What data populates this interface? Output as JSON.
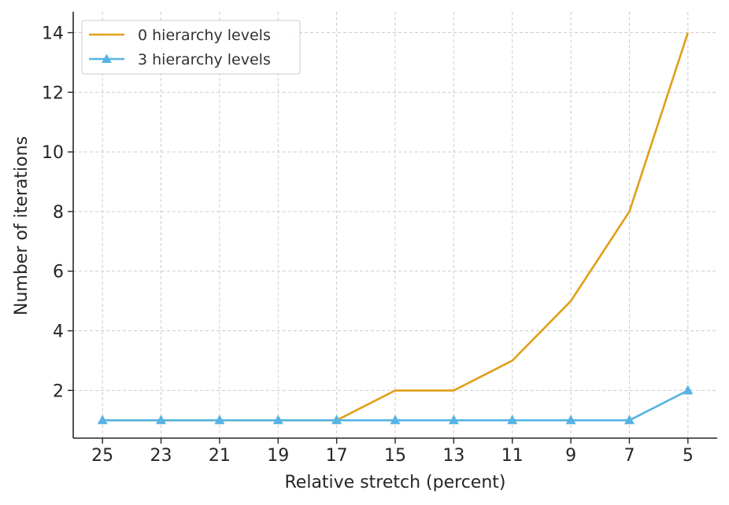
{
  "chart_data": {
    "type": "line",
    "x_ticks": [
      "25",
      "23",
      "21",
      "19",
      "17",
      "15",
      "13",
      "11",
      "9",
      "7",
      "5"
    ],
    "x": [
      25,
      23,
      21,
      19,
      17,
      15,
      13,
      11,
      9,
      7,
      5
    ],
    "x_reversed": true,
    "xlim": [
      26,
      4
    ],
    "y_ticks": [
      "2",
      "4",
      "6",
      "8",
      "10",
      "12",
      "14"
    ],
    "ylim": [
      0.4,
      14.7
    ],
    "xlabel": "Relative stretch (percent)",
    "ylabel": "Number of iterations",
    "grid": true,
    "legend_position": "top-left",
    "series": [
      {
        "name": "0 hierarchy levels",
        "values": [
          1,
          1,
          1,
          1,
          1,
          2,
          2,
          3,
          5,
          8,
          14
        ],
        "color": "#E09F17",
        "marker": "none"
      },
      {
        "name": "3 hierarchy levels",
        "values": [
          1,
          1,
          1,
          1,
          1,
          1,
          1,
          1,
          1,
          1,
          2
        ],
        "color": "#56B4E3",
        "marker": "triangle"
      }
    ]
  }
}
